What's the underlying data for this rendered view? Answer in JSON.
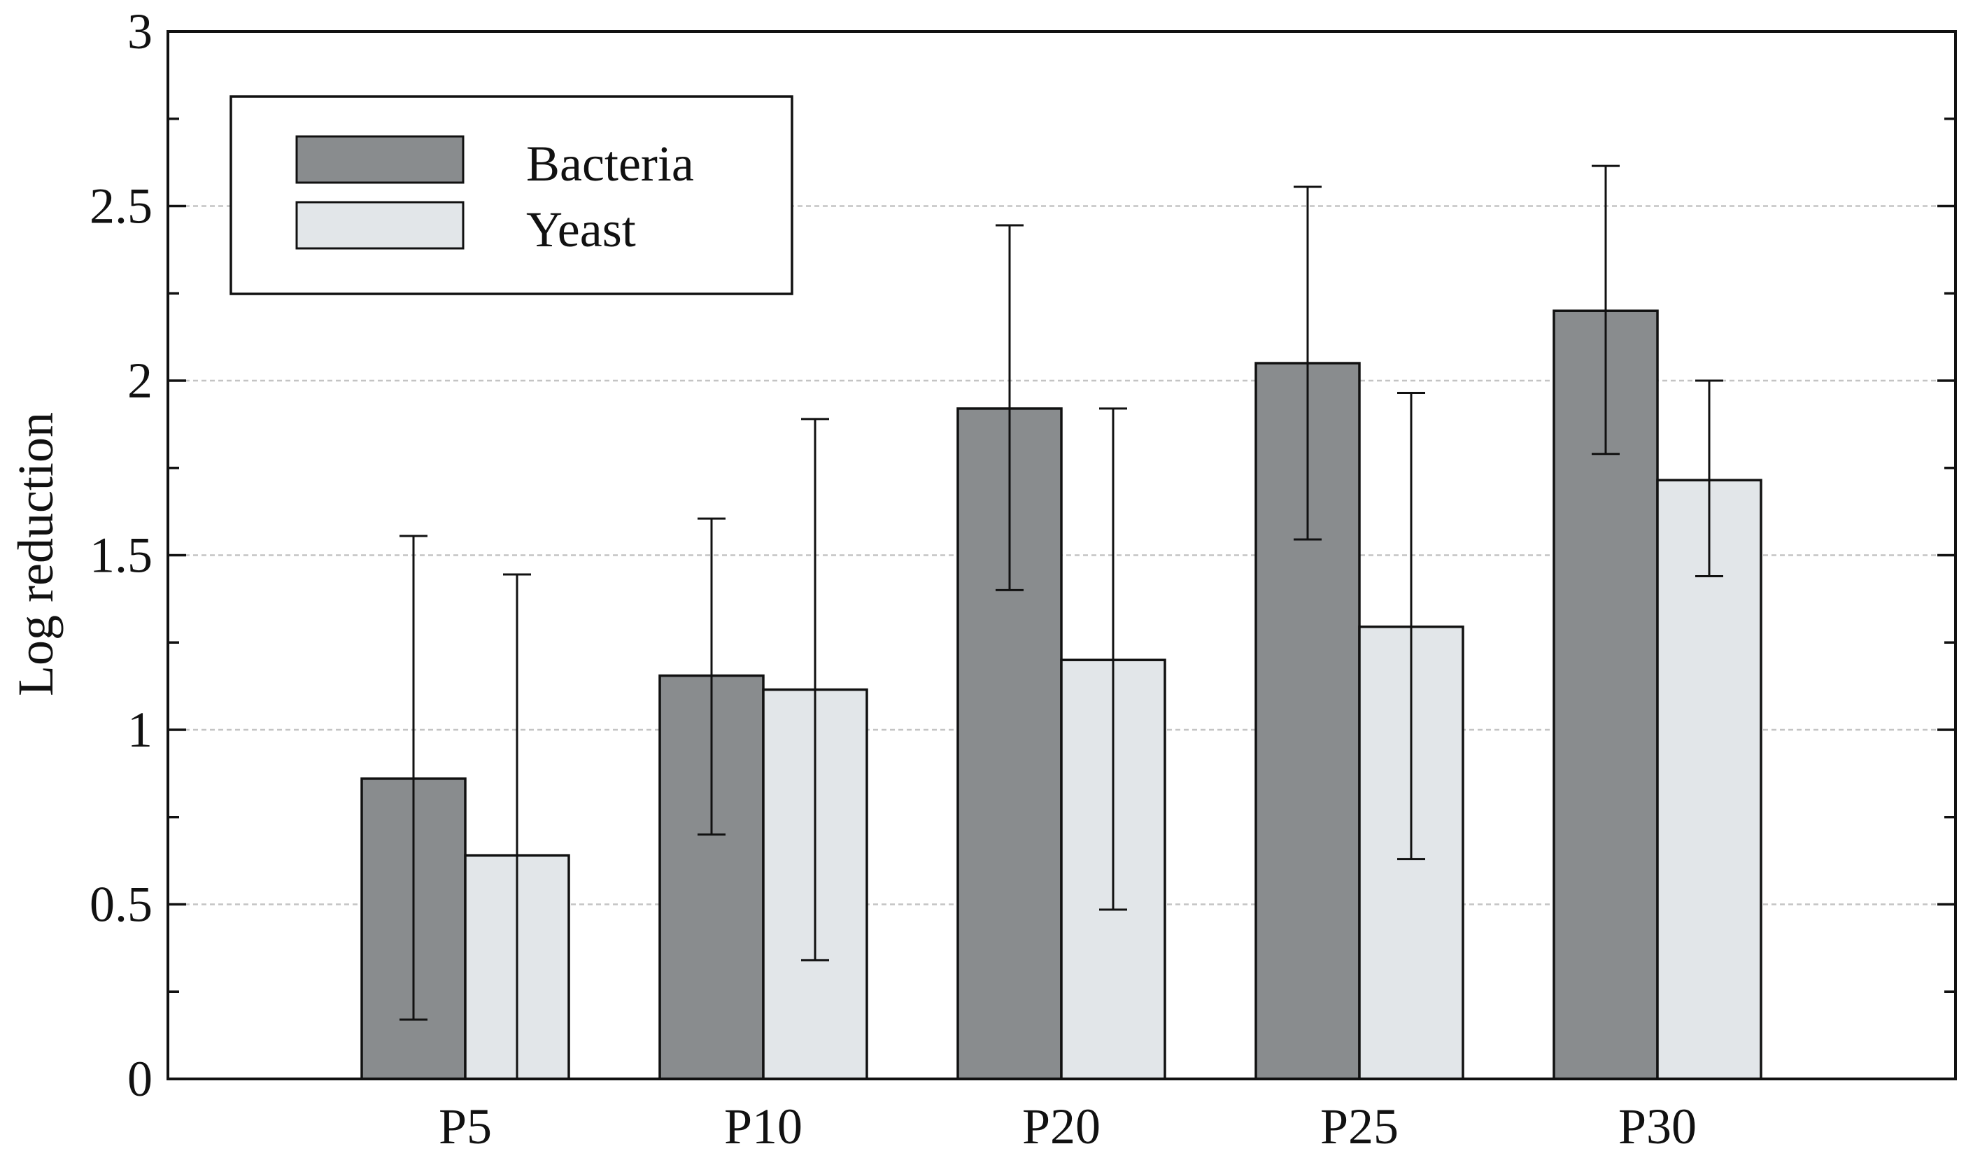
{
  "chart_data": {
    "type": "bar",
    "title": "",
    "xlabel": "",
    "ylabel": "Log reduction",
    "categories": [
      "P5",
      "P10",
      "P20",
      "P25",
      "P30"
    ],
    "series": [
      {
        "name": "Bacteria",
        "color": "#898c8e",
        "values": [
          0.86,
          1.155,
          1.92,
          2.05,
          2.2
        ],
        "error_low": [
          0.17,
          0.7,
          1.4,
          1.545,
          1.79
        ],
        "error_high": [
          1.555,
          1.605,
          2.445,
          2.555,
          2.615
        ]
      },
      {
        "name": "Yeast",
        "color": "#e2e6e9",
        "values": [
          0.64,
          1.115,
          1.2,
          1.295,
          1.715
        ],
        "error_low": [
          0.0,
          0.34,
          0.485,
          0.63,
          1.44
        ],
        "error_high": [
          1.445,
          1.89,
          1.92,
          1.965,
          2.0
        ]
      }
    ],
    "ylim": [
      0,
      3
    ],
    "y_ticks": [
      {
        "value": 0,
        "label": "0"
      },
      {
        "value": 0.5,
        "label": "0.5"
      },
      {
        "value": 1,
        "label": "1"
      },
      {
        "value": 1.5,
        "label": "1.5"
      },
      {
        "value": 2,
        "label": "2"
      },
      {
        "value": 2.5,
        "label": "2.5"
      },
      {
        "value": 3,
        "label": "3"
      }
    ],
    "grid": true,
    "legend_position": "top-left"
  }
}
